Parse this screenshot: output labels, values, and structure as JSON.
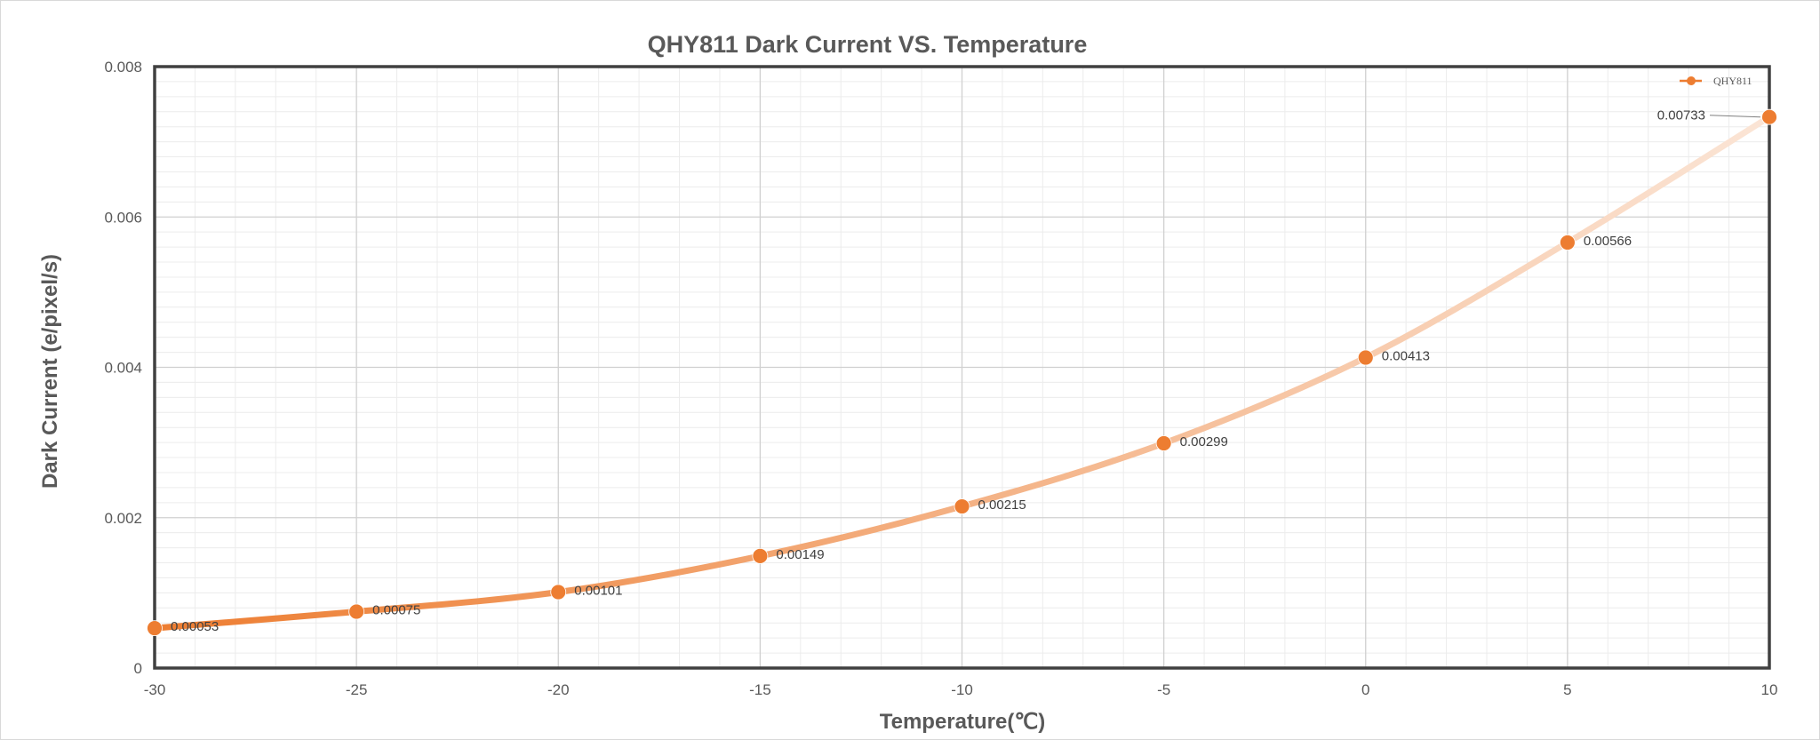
{
  "chart_data": {
    "type": "line",
    "title": "QHY811  Dark Current VS. Temperature",
    "xlabel": "Temperature(℃)",
    "ylabel": "Dark Current (e/pixel/s)",
    "xlim": [
      -30,
      10
    ],
    "ylim": [
      0,
      0.008
    ],
    "x_ticks": [
      "-30",
      "-25",
      "-20",
      "-15",
      "-10",
      "-5",
      "0",
      "5",
      "10"
    ],
    "y_ticks": [
      "0",
      "0.002",
      "0.004",
      "0.006",
      "0.008"
    ],
    "grid": true,
    "legend_position": "top-right",
    "smooth": true,
    "series": [
      {
        "name": "QHY811",
        "color_start": "#ed7d31",
        "color_end": "#fbe5d6",
        "x": [
          -30,
          -25,
          -20,
          -15,
          -10,
          -5,
          0,
          5,
          10
        ],
        "y": [
          0.00053,
          0.00075,
          0.00101,
          0.00149,
          0.00215,
          0.00299,
          0.00413,
          0.00566,
          0.00733
        ],
        "labels": [
          "0.00053",
          "0.00075",
          "0.00101",
          "0.00149",
          "0.00215",
          "0.00299",
          "0.00413",
          "0.00566",
          "0.00733"
        ]
      }
    ]
  }
}
